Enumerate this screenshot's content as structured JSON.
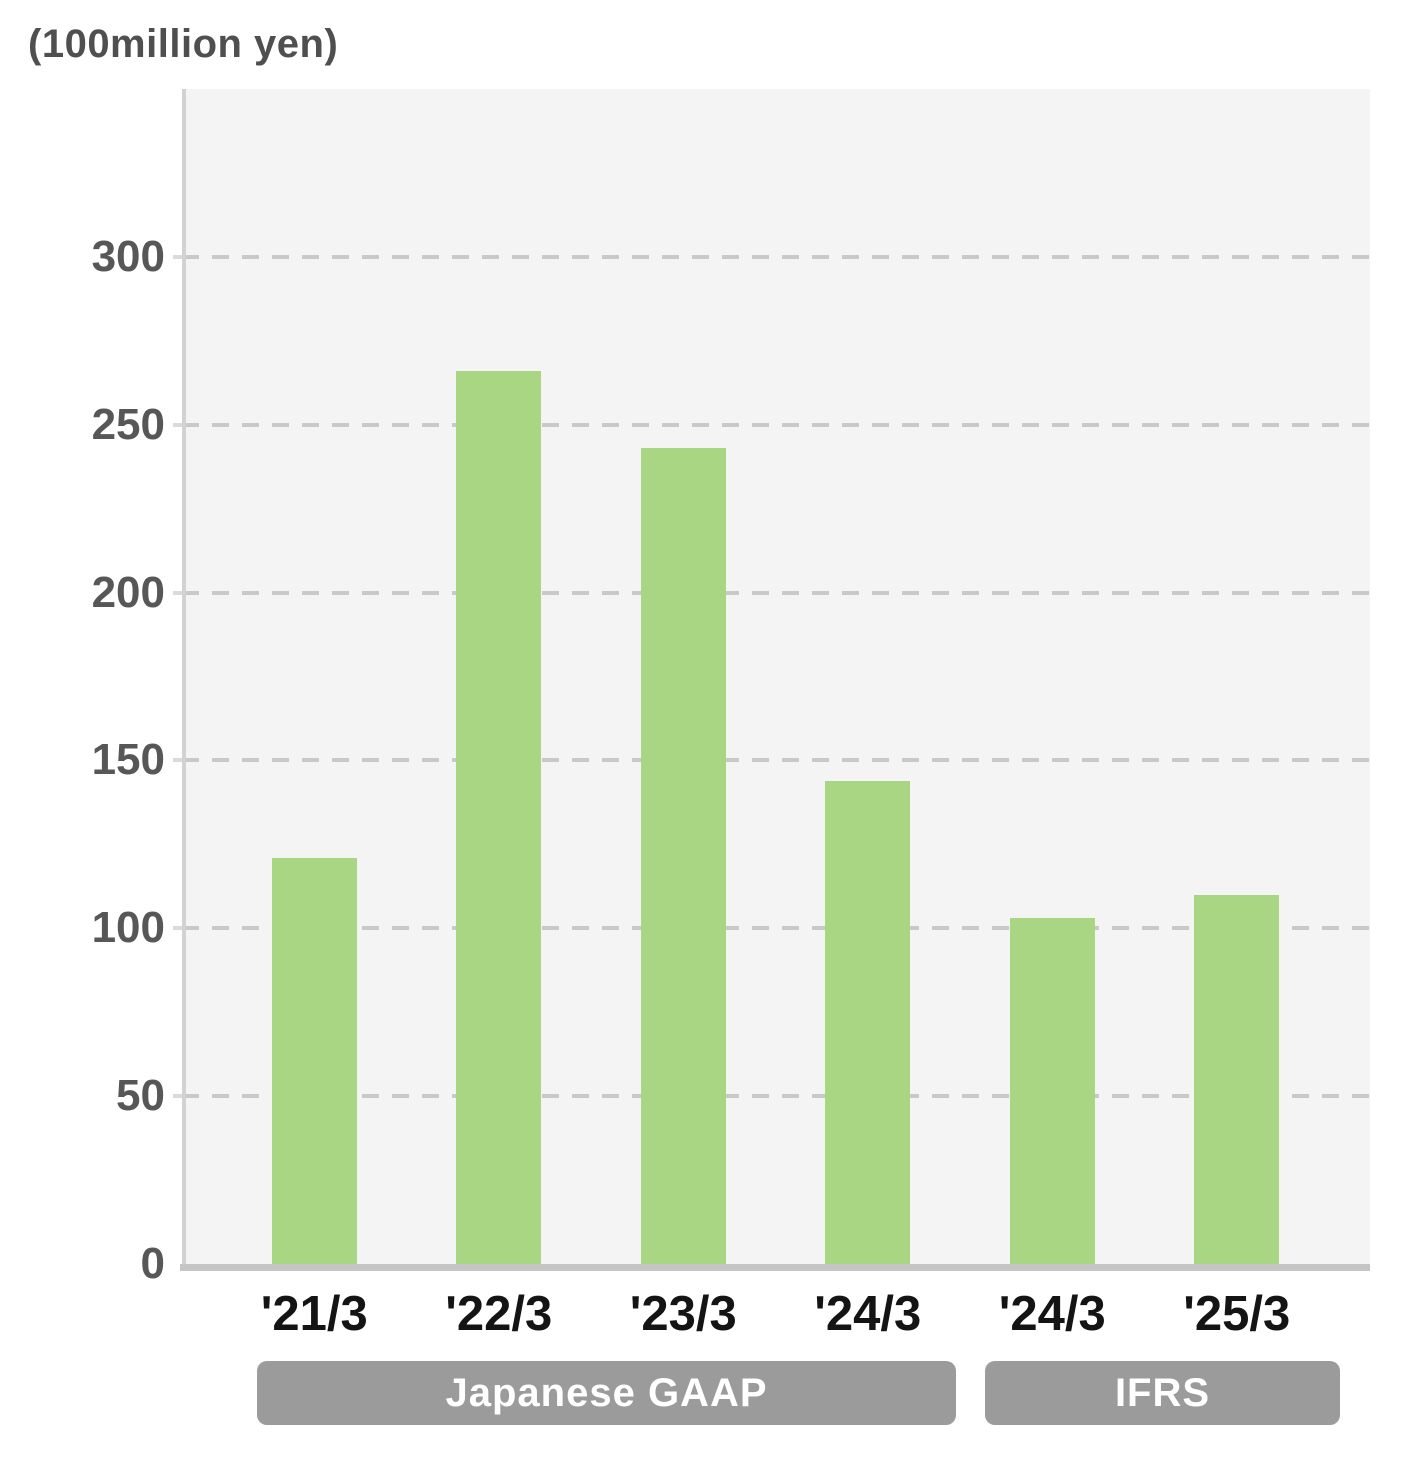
{
  "chart_data": {
    "type": "bar",
    "title": "(100million yen)",
    "unit_label": "(100million yen)",
    "categories": [
      "'21/3",
      "'22/3",
      "'23/3",
      "'24/3",
      "'24/3",
      "'25/3"
    ],
    "values": [
      121,
      266,
      243,
      144,
      103,
      110
    ],
    "xlabel": "",
    "ylabel": "(100million yen)",
    "ylim": [
      0,
      350
    ],
    "yticks": [
      0,
      50,
      100,
      150,
      200,
      250,
      300
    ],
    "grid": "horizontal dashed",
    "legend": "none",
    "groups": [
      {
        "label": "Japanese GAAP",
        "span": [
          0,
          3
        ]
      },
      {
        "label": "IFRS",
        "span": [
          4,
          5
        ]
      }
    ],
    "colors": {
      "bar": "#a8d682",
      "plot_background": "#f4f4f4",
      "gridline": "#c9c9c9",
      "axis": "#c5c5c5",
      "y_label_text": "#575757",
      "x_label_text": "#141414",
      "group_pill_background": "#9b9b9b",
      "group_pill_text": "#ffffff"
    }
  }
}
